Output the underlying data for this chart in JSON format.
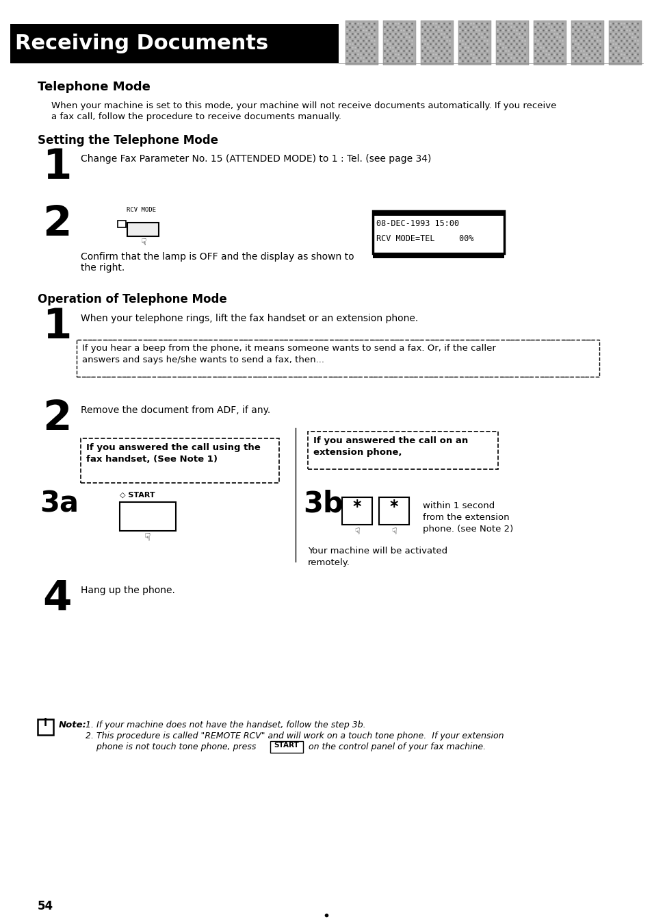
{
  "title": "Receiving Documents",
  "section1": "Telephone Mode",
  "intro_text1": "When your machine is set to this mode, your machine will not receive documents automatically. If you receive",
  "intro_text2": "a fax call, follow the procedure to receive documents manually.",
  "section2": "Setting the Telephone Mode",
  "step1_text": "Change Fax Parameter No. 15 (ATTENDED MODE) to 1 : Tel. (see page 34)",
  "step2_confirm1": "Confirm that the lamp is OFF and the display as shown to",
  "step2_confirm2": "the right.",
  "rcv_mode_label": "RCV MODE",
  "display_line1": "08-DEC-1993 15:00",
  "display_line2": "RCV MODE=TEL     00%",
  "section3": "Operation of Telephone Mode",
  "op_step1": "When your telephone rings, lift the fax handset or an extension phone.",
  "beep_line1": "If you hear a beep from the phone, it means someone wants to send a fax. Or, if the caller",
  "beep_line2": "answers and says he/she wants to send a fax, then...",
  "op_step2": "Remove the document from ADF, if any.",
  "box_left_line1": "If you answered the call using the",
  "box_left_line2": "fax handset, (See Note 1)",
  "box_right_line1": "If you answered the call on an",
  "box_right_line2": "extension phone,",
  "right_text1": "within 1 second",
  "right_text2": "from the extension",
  "right_text3": "phone. (see Note 2)",
  "activated1": "Your machine will be activated",
  "activated2": "remotely.",
  "step4_text": "Hang up the phone.",
  "note1": "1. If your machine does not have the handset, follow the step 3b.",
  "note2a": "2. This procedure is called \"REMOTE RCV\" and will work on a touch tone phone.  If your extension",
  "note2b": "    phone is not touch tone phone, press",
  "note2c": " on the control panel of your fax machine.",
  "start_label": "START",
  "page_number": "54",
  "bg_color": "#ffffff"
}
